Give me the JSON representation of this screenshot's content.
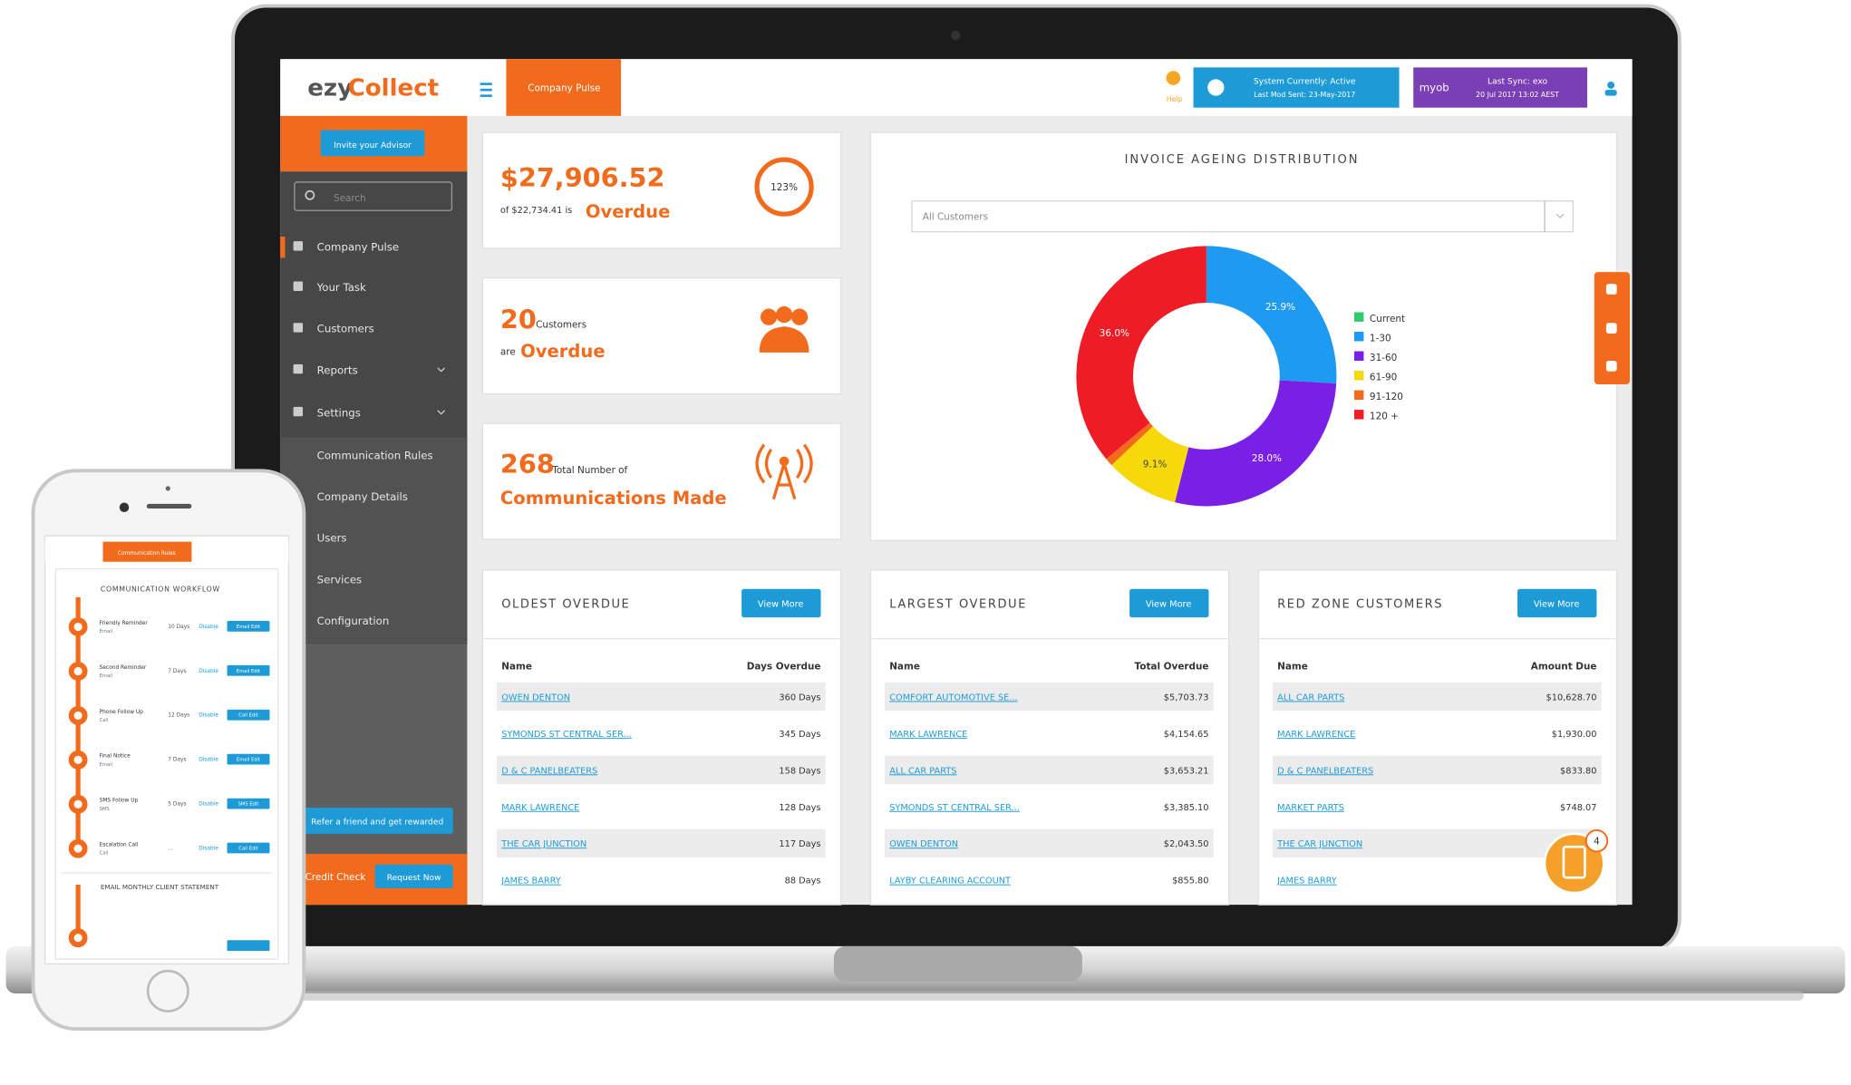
{
  "brand_prefix": "ezy",
  "brand_suffix": "Collect",
  "header": {
    "page": "Company Pulse",
    "help": "Help",
    "status": "System Currently: Active",
    "last_mod": "Last Mod Sent: 23-May-2017",
    "myob": "myob",
    "last_sync": "Last Sync: exo",
    "sync_date": "20 Jul 2017 13:02 AEST"
  },
  "sidebar": {
    "invite": "Invite your Advisor",
    "search": "Search",
    "menu": [
      "Company Pulse",
      "Your Task",
      "Customers",
      "Reports",
      "Settings"
    ],
    "submenu": [
      "Communication Rules",
      "Company Details",
      "Users",
      "Services",
      "Configuration"
    ],
    "refer": "Refer a friend and get rewarded",
    "credit": "Credit Check",
    "request": "Request Now"
  },
  "kpis": {
    "amount": "$27,906.52",
    "of": "of $22,734.41 is",
    "overdue": "Overdue",
    "ring": "123%",
    "customers_count": "20",
    "customers": "Customers",
    "are": "are",
    "customers_overdue": "Overdue",
    "comms_count": "268",
    "comms_total": "Total Number of",
    "comms_made": "Communications Made"
  },
  "ageing": {
    "title": "INVOICE AGEING DISTRIBUTION",
    "filter": "All Customers",
    "categories": [
      "Current",
      "1-30",
      "31-60",
      "61-90",
      "91-120",
      "120 +"
    ],
    "values": [
      0,
      25.9,
      28.0,
      9.1,
      1.0,
      36.0
    ],
    "value_labels": [
      null,
      "25.9%",
      "28.0%",
      "9.1%",
      null,
      "36.0%"
    ],
    "colors": [
      "#2ecc71",
      "#1e9bf0",
      "#7a1fe6",
      "#f5d90a",
      "#f26b1d",
      "#ee1c25"
    ]
  },
  "tables": [
    {
      "title": "OLDEST OVERDUE",
      "button": "View More",
      "columns": [
        "Name",
        "Days Overdue"
      ],
      "rows": [
        [
          "OWEN DENTON",
          "360 Days"
        ],
        [
          "SYMONDS ST CENTRAL SER...",
          "345 Days"
        ],
        [
          "D & C PANELBEATERS",
          "158 Days"
        ],
        [
          "MARK LAWRENCE",
          "128 Days"
        ],
        [
          "THE CAR JUNCTION",
          "117 Days"
        ],
        [
          "JAMES BARRY",
          "88 Days"
        ]
      ]
    },
    {
      "title": "LARGEST OVERDUE",
      "button": "View More",
      "columns": [
        "Name",
        "Total Overdue"
      ],
      "rows": [
        [
          "COMFORT AUTOMOTIVE SE...",
          "$5,703.73"
        ],
        [
          "MARK LAWRENCE",
          "$4,154.65"
        ],
        [
          "ALL CAR PARTS",
          "$3,653.21"
        ],
        [
          "SYMONDS ST CENTRAL SER...",
          "$3,385.10"
        ],
        [
          "OWEN DENTON",
          "$2,043.50"
        ],
        [
          "LAYBY CLEARING ACCOUNT",
          "$855.80"
        ]
      ]
    },
    {
      "title": "RED ZONE CUSTOMERS",
      "button": "View More",
      "columns": [
        "Name",
        "Amount Due"
      ],
      "rows": [
        [
          "ALL CAR PARTS",
          "$10,628.70"
        ],
        [
          "MARK LAWRENCE",
          "$1,930.00"
        ],
        [
          "D & C PANELBEATERS",
          "$833.80"
        ],
        [
          "MARKET PARTS",
          "$748.07"
        ],
        [
          "THE CAR JUNCTION",
          null
        ],
        [
          "JAMES BARRY",
          null
        ]
      ]
    }
  ],
  "badge": "4",
  "phone": {
    "tab": "Communication Rules",
    "workflow": "COMMUNICATION WORKFLOW",
    "statement": "EMAIL MONTHLY CLIENT STATEMENT",
    "steps": [
      {
        "name": "Friendly Reminder",
        "channel": "Email",
        "days": "10 Days",
        "action": "Disable",
        "button": "Email Edit"
      },
      {
        "name": "Second Reminder",
        "channel": "Email",
        "days": "7 Days",
        "action": "Disable",
        "button": "Email Edit"
      },
      {
        "name": "Phone Follow Up",
        "channel": "Call",
        "days": "12 Days",
        "action": "Disable",
        "button": "Call Edit"
      },
      {
        "name": "Final Notice",
        "channel": "Email",
        "days": "7 Days",
        "action": "Disable",
        "button": "Email Edit"
      },
      {
        "name": "SMS Follow Up",
        "channel": "SMS",
        "days": "5 Days",
        "action": "Disable",
        "button": "SMS Edit"
      },
      {
        "name": "Escalation Call",
        "channel": "Call",
        "days": "...",
        "action": "Disable",
        "button": "Call Edit"
      }
    ]
  }
}
